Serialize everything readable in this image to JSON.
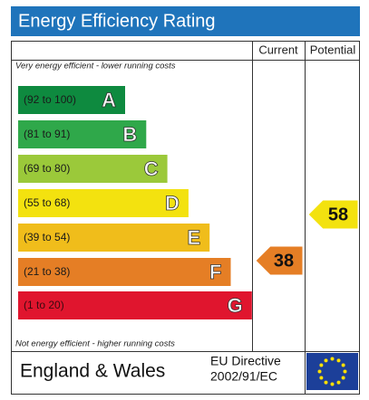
{
  "header": {
    "title": "Energy Efficiency Rating"
  },
  "columns": [
    "Current",
    "Potential"
  ],
  "top_note": "Very energy efficient - lower running costs",
  "bands": [
    {
      "range": "(92 to 100)",
      "letter": "A",
      "color": "#0e8a3f"
    },
    {
      "range": "(81 to 91)",
      "letter": "B",
      "color": "#2fa84a"
    },
    {
      "range": "(69 to 80)",
      "letter": "C",
      "color": "#9bc93a"
    },
    {
      "range": "(55 to 68)",
      "letter": "D",
      "color": "#f3e20f"
    },
    {
      "range": "(39 to 54)",
      "letter": "E",
      "color": "#f0bd1b"
    },
    {
      "range": "(21 to 38)",
      "letter": "F",
      "color": "#e57e25"
    },
    {
      "range": "(1 to 20)",
      "letter": "G",
      "color": "#e0152e"
    }
  ],
  "bottom_note": "Not energy efficient - higher running costs",
  "current": {
    "value": 38,
    "color": "#e57e25"
  },
  "potential": {
    "value": 58,
    "color": "#f3e20f"
  },
  "footer": {
    "region": "England & Wales",
    "directive_line1": "EU Directive",
    "directive_line2": "2002/91/EC"
  }
}
